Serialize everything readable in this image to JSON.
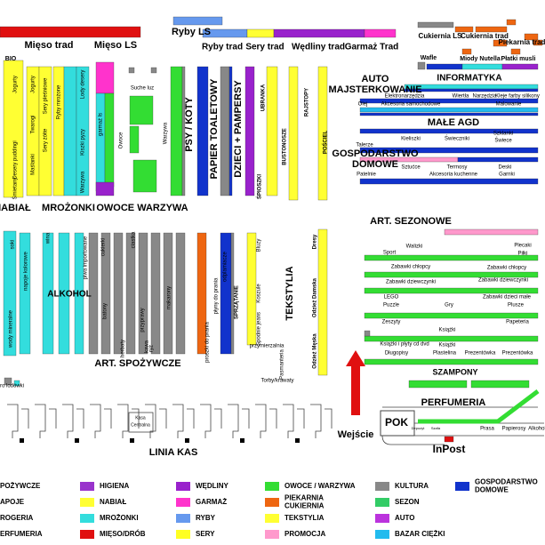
{
  "labels": [
    "Mięso trad",
    "Mięso LS",
    "Ryby LS",
    "Ryby trad",
    "Sery trad",
    "Wędliny trad",
    "Garmaż Trad",
    "Cukiernia LS",
    "Cukiernia trad",
    "Piekarnia trad",
    "Wafle",
    "Miody Nutella",
    "Płatki musli",
    "AUTO",
    "MAJSTERKOWANIE",
    "INFORMATYKA",
    "Elektronarzędzia",
    "Wiertła",
    "Narzędzia",
    "Kleje farby silikony",
    "Olej",
    "Akcesoria samochodowe",
    "Malowanie",
    "MAŁE AGD",
    "GOSPODARSTWO",
    "DOMOWE",
    "Talerze",
    "Kieliszki",
    "Świeczniki",
    "Szklanki",
    "Świece",
    "Sztućce",
    "Termosy",
    "Deski",
    "Akcesoria kuchenne",
    "Garnki",
    "Patelnie",
    "BIO",
    "NABIAŁ",
    "MROŻONKI",
    "OWOCE WARZYWA",
    "Suche luz",
    "Owoce",
    "Warzywa",
    "PSY / KOTY",
    "PAPIER TOALETOWY",
    "DZIECI + PAMPERSY",
    "UBRANKA",
    "BUSTONOSZE",
    "RAJSTOPY",
    "POŚCIEL",
    "ŚPIOSZKI",
    "Jogurty",
    "Jogurty",
    "Twarogi",
    "Desery puddingi",
    "Maślanki",
    "Śmietany",
    "Sery pleśniowe",
    "Sery żółte",
    "Ryby mrożone",
    "Lody desery",
    "Kiszki pyzy",
    "Warzywa",
    "garmaż ls",
    "ART. SEZONOWE",
    "Walizki",
    "Plecaki",
    "Piłki",
    "Sport",
    "Zabawki chłopcy",
    "Zabawki chłopcy",
    "Zabawki dziewczynki",
    "Zabawki dziewczynki",
    "LEGO",
    "Zabawki dzieci małe",
    "Puzzle",
    "Gry",
    "Plusze",
    "Zeszyty",
    "Papeteria",
    "Książki",
    "Książki i płyty cd dvd",
    "Książki",
    "Długopisy",
    "Plastelina",
    "Prezentówka",
    "Prezentówka",
    "SZAMPONY",
    "PERFUMERIA",
    "POK",
    "InPost",
    "Wejście",
    "LINIA KAS",
    "Kasa",
    "Centralna",
    "ALKOHOL",
    "TEKSTYLIA",
    "ART. SPOŻYWCZE",
    "Prasa",
    "Papierosy",
    "Alkohol",
    "Depozyt",
    "Szafa",
    "Dresy",
    "Odzież Damska",
    "Odzież Męska",
    "Bluzy",
    "Koszule",
    "Spodnie jeans",
    "przymierzalnia",
    "Torby/krawaty",
    "Pasmanteria",
    "SPRZĄTANIE",
    "napoje kolorowe",
    "wody mineralne",
    "soki",
    "wina",
    "piwa importowane",
    "cukierki",
    "ciastka",
    "batony",
    "herbaty",
    "kawa",
    "przyprawy",
    "makarony",
    "ryż",
    "płyny do prania",
    "proszki do prania",
    "odplamiacze",
    "ro lodówki"
  ],
  "legend_cut": [
    "POŻYWCZE",
    "APOJE",
    "ROGERIA",
    "ERFUMERIA"
  ],
  "legend": [
    {
      "name": [
        "HIGIENA"
      ],
      "color": "#9933cc"
    },
    {
      "name": [
        "NABIAŁ"
      ],
      "color": "#ffff33"
    },
    {
      "name": [
        "MROŻONKI"
      ],
      "color": "#33dddd"
    },
    {
      "name": [
        "MIĘSO/DRÓB"
      ],
      "color": "#e01010"
    },
    {
      "name": [
        "WĘDLINY"
      ],
      "color": "#9922cc"
    },
    {
      "name": [
        "GARMAŻ"
      ],
      "color": "#ff33cc"
    },
    {
      "name": [
        "RYBY"
      ],
      "color": "#6699ee"
    },
    {
      "name": [
        "SERY"
      ],
      "color": "#ffff22"
    },
    {
      "name": [
        "OWOCE / WARZYWA"
      ],
      "color": "#33dd33"
    },
    {
      "name": [
        "PIEKARNIA",
        "CUKIERNIA"
      ],
      "color": "#ee6611"
    },
    {
      "name": [
        "TEKSTYLIA"
      ],
      "color": "#ffff33"
    },
    {
      "name": [
        "PROMOCJA"
      ],
      "color": "#ff99cc"
    },
    {
      "name": [
        "KULTURA"
      ],
      "color": "#888888"
    },
    {
      "name": [
        "SEZON"
      ],
      "color": "#33cc66"
    },
    {
      "name": [
        "AUTO"
      ],
      "color": "#bb33dd"
    },
    {
      "name": [
        "BAZAR CIĘŻKI"
      ],
      "color": "#22bbee"
    },
    {
      "name": [
        "GOSPODARSTWO",
        "DOMOWE"
      ],
      "color": "#1133cc"
    }
  ]
}
